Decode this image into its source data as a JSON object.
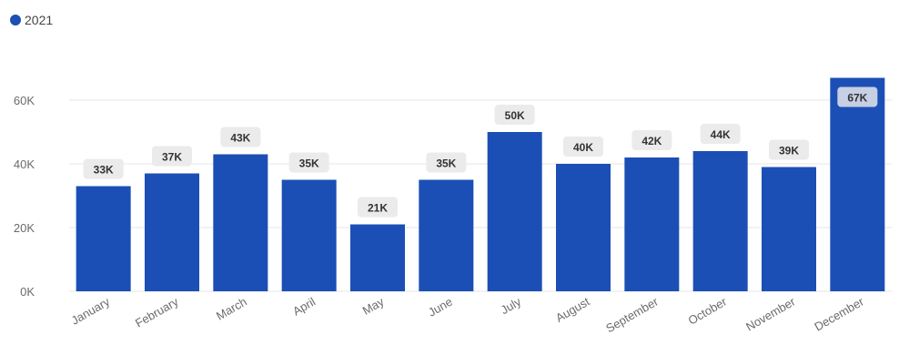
{
  "chart_data": {
    "type": "bar",
    "categories": [
      "January",
      "February",
      "March",
      "April",
      "May",
      "June",
      "July",
      "August",
      "September",
      "October",
      "November",
      "December"
    ],
    "series": [
      {
        "name": "2021",
        "values": [
          33,
          37,
          43,
          35,
          21,
          35,
          50,
          40,
          42,
          44,
          39,
          67
        ],
        "data_labels": [
          "33K",
          "37K",
          "43K",
          "35K",
          "21K",
          "35K",
          "50K",
          "40K",
          "42K",
          "44K",
          "39K",
          "67K"
        ],
        "color": "#1b4fb5"
      }
    ],
    "y_ticks": [
      0,
      20,
      40,
      60
    ],
    "y_tick_labels": [
      "0K",
      "20K",
      "40K",
      "60K"
    ],
    "ylim": [
      0,
      60
    ],
    "grid": true,
    "legend": {
      "position": "top-left",
      "label": "2021",
      "color": "#1b4fb5"
    },
    "title": "",
    "xlabel": "",
    "ylabel": ""
  }
}
